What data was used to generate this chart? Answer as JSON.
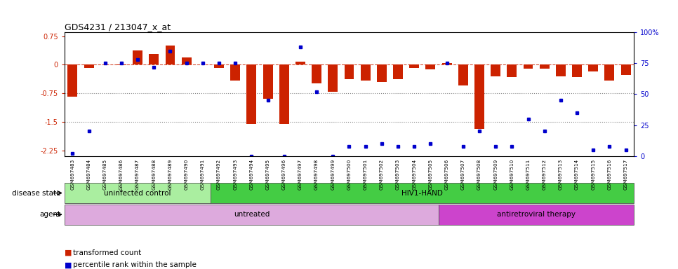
{
  "title": "GDS4231 / 213047_x_at",
  "samples": [
    "GSM697483",
    "GSM697484",
    "GSM697485",
    "GSM697486",
    "GSM697487",
    "GSM697488",
    "GSM697489",
    "GSM697490",
    "GSM697491",
    "GSM697492",
    "GSM697493",
    "GSM697494",
    "GSM697495",
    "GSM697496",
    "GSM697497",
    "GSM697498",
    "GSM697499",
    "GSM697500",
    "GSM697501",
    "GSM697502",
    "GSM697503",
    "GSM697504",
    "GSM697505",
    "GSM697506",
    "GSM697507",
    "GSM697508",
    "GSM697509",
    "GSM697510",
    "GSM697511",
    "GSM697512",
    "GSM697513",
    "GSM697514",
    "GSM697515",
    "GSM697516",
    "GSM697517"
  ],
  "bar_values": [
    -0.85,
    -0.08,
    0.0,
    -0.02,
    0.38,
    0.28,
    0.5,
    0.18,
    0.0,
    -0.08,
    -0.42,
    -1.55,
    -0.9,
    -1.55,
    0.08,
    -0.5,
    -0.72,
    -0.38,
    -0.42,
    -0.45,
    -0.38,
    -0.08,
    -0.12,
    0.04,
    -0.55,
    -1.68,
    -0.3,
    -0.32,
    -0.1,
    -0.1,
    -0.3,
    -0.32,
    -0.18,
    -0.42,
    -0.28
  ],
  "percentile_values": [
    2,
    20,
    75,
    75,
    78,
    72,
    85,
    75,
    75,
    75,
    75,
    0,
    45,
    0,
    88,
    52,
    0,
    8,
    8,
    10,
    8,
    8,
    10,
    75,
    8,
    20,
    8,
    8,
    30,
    20,
    45,
    35,
    5,
    8,
    5
  ],
  "ylim_left": [
    -2.4,
    0.85
  ],
  "ylim_right": [
    0,
    100
  ],
  "yticks_left": [
    0.75,
    0.0,
    -0.75,
    -1.5,
    -2.25
  ],
  "ytick_labels_left": [
    "0.75",
    "0",
    "-0.75",
    "-1.5",
    "-2.25"
  ],
  "yticks_right": [
    100,
    75,
    50,
    25,
    0
  ],
  "ytick_labels_right": [
    "100%",
    "75",
    "50",
    "25",
    "0"
  ],
  "hlines": [
    0.0,
    -0.75,
    -1.5
  ],
  "bar_color": "#cc2200",
  "percentile_color": "#0000cc",
  "disease_state_groups": [
    {
      "label": "uninfected control",
      "start": 0,
      "end": 9,
      "color": "#aaeea0"
    },
    {
      "label": "HIV1-HAND",
      "start": 9,
      "end": 35,
      "color": "#44cc44"
    }
  ],
  "agent_groups": [
    {
      "label": "untreated",
      "start": 0,
      "end": 23,
      "color": "#ddaadd"
    },
    {
      "label": "antiretroviral therapy",
      "start": 23,
      "end": 35,
      "color": "#cc44cc"
    }
  ],
  "legend_items": [
    {
      "label": "transformed count",
      "color": "#cc2200"
    },
    {
      "label": "percentile rank within the sample",
      "color": "#0000cc"
    }
  ],
  "row_labels": [
    "disease state",
    "agent"
  ],
  "background_color": "#ffffff"
}
